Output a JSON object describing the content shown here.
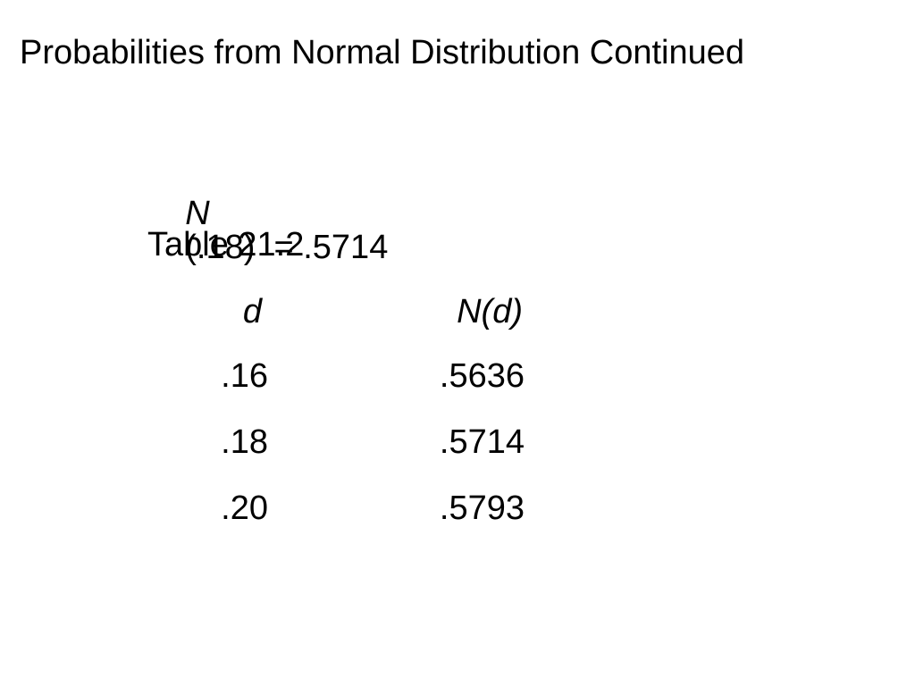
{
  "title": "Probabilities from Normal Distribution Continued",
  "formula": {
    "symbol": "N",
    "rest": "(.18)  = .5714"
  },
  "table": {
    "caption": "Table 21.2",
    "headers": [
      "d",
      "N(d)"
    ],
    "rows": [
      [
        ".16",
        ".5636"
      ],
      [
        ".18",
        ".5714"
      ],
      [
        ".20",
        ".5793"
      ]
    ]
  }
}
